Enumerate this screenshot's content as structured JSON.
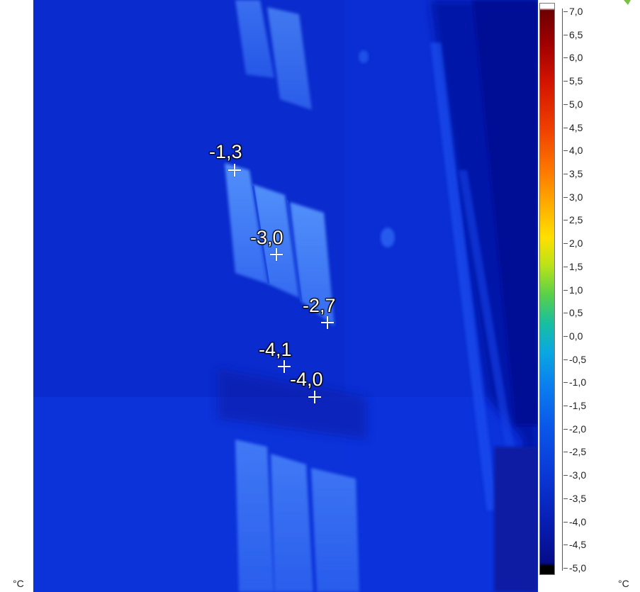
{
  "measurement_spots": [
    {
      "label": "-1,3"
    },
    {
      "label": "-3,0"
    },
    {
      "label": "-2,7"
    },
    {
      "label": "-4,1"
    },
    {
      "label": "-4,0"
    }
  ],
  "color_scale": {
    "ticks": [
      "7,0",
      "6,5",
      "6,0",
      "5,5",
      "5,0",
      "4,5",
      "4,0",
      "3,5",
      "3,0",
      "2,5",
      "2,0",
      "1,5",
      "1,0",
      "0,5",
      "0,0",
      "-0,5",
      "-1,0",
      "-1,5",
      "-2,0",
      "-2,5",
      "-3,0",
      "-3,5",
      "-4,0",
      "-4,5",
      "-5,0"
    ],
    "max": 7.0,
    "min": -5.0,
    "palette": [
      "#ffffff",
      "#6e0000",
      "#d41500",
      "#ff7e00",
      "#ffe000",
      "#5ad04a",
      "#0aa8e0",
      "#0a58ea",
      "#050c8a",
      "#000000"
    ]
  },
  "units": {
    "left": "°C",
    "right": "°C"
  },
  "colors": {
    "background_wall": "#0b2fd6",
    "window_glow": "#4f8dff"
  }
}
